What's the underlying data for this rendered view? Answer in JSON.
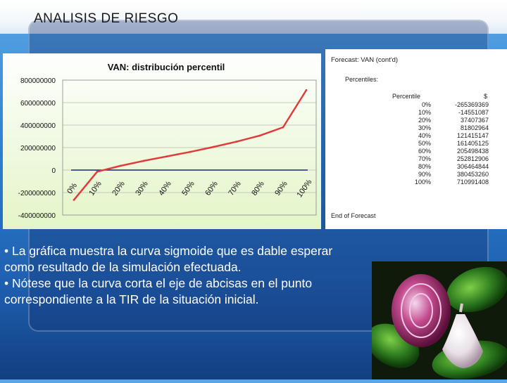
{
  "slide": {
    "title": "ANALISIS DE RIESGO",
    "bullets": [
      "• La gráfica muestra la curva sigmoide que es dable esperar",
      "como resultado de la simulación efectuada.",
      "• Nótese que la curva corta el eje de abcisas en el punto",
      "correspondiente a la TIR de la situación inicial."
    ],
    "colors": {
      "accent_blue": "#2f7fd0",
      "line_red": "#e03c3c",
      "axis_blue": "#1a237e"
    }
  },
  "forecast": {
    "title": "Forecast: VAN (cont'd)",
    "section": "Percentiles:",
    "col_percentile": "Percentile",
    "col_value": "$",
    "rows": [
      {
        "p": "0%",
        "v": "-265369369"
      },
      {
        "p": "10%",
        "v": "-14551087"
      },
      {
        "p": "20%",
        "v": "37407367"
      },
      {
        "p": "30%",
        "v": "81802964"
      },
      {
        "p": "40%",
        "v": "121415147"
      },
      {
        "p": "50%",
        "v": "161405125"
      },
      {
        "p": "60%",
        "v": "205498438"
      },
      {
        "p": "70%",
        "v": "252812906"
      },
      {
        "p": "80%",
        "v": "306464844"
      },
      {
        "p": "90%",
        "v": "380453260"
      },
      {
        "p": "100%",
        "v": "710991408"
      }
    ],
    "end": "End of Forecast"
  },
  "chart_data": {
    "type": "line",
    "title": "VAN: distribución percentil",
    "categories": [
      "0%",
      "10%",
      "20%",
      "30%",
      "40%",
      "50%",
      "60%",
      "70%",
      "80%",
      "90%",
      "100%"
    ],
    "series": [
      {
        "values": [
          -265369369,
          -14551087,
          37407367,
          81802964,
          121415147,
          161405125,
          205498438,
          252812906,
          306464844,
          380453260,
          710991408
        ]
      }
    ],
    "yticks": [
      "800000000",
      "600000000",
      "400000000",
      "200000000",
      "0",
      "-200000000",
      "-400000000"
    ],
    "ylim": [
      -400000000,
      800000000
    ],
    "grid": "horizontal",
    "series_color": "#e03c3c"
  }
}
